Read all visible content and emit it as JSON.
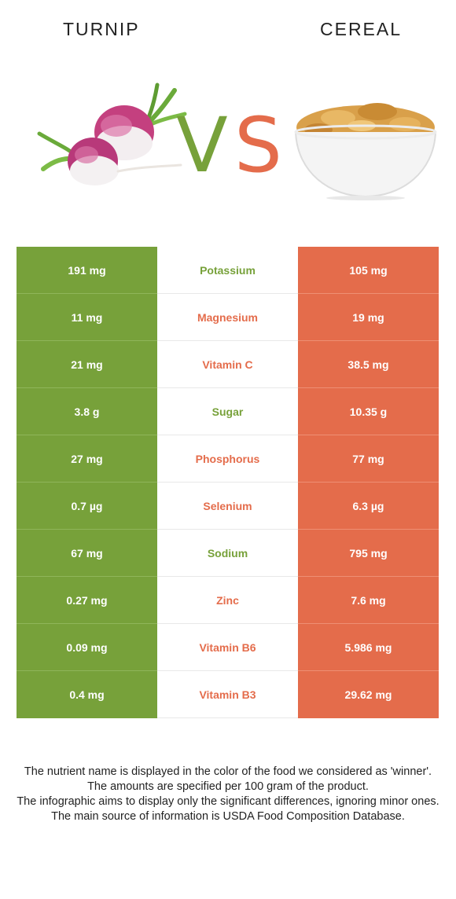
{
  "header": {
    "left_food": "TURNIP",
    "right_food": "CEREAL",
    "vs_v": "V",
    "vs_s": "S"
  },
  "colors": {
    "left_winner": "#77a13a",
    "right_winner": "#e46c4b"
  },
  "icons": {
    "left": "turnip-illustration",
    "right": "cereal-bowl-illustration"
  },
  "rows": [
    {
      "left": "191 mg",
      "nutrient": "Potassium",
      "right": "105 mg",
      "winner": "left"
    },
    {
      "left": "11 mg",
      "nutrient": "Magnesium",
      "right": "19 mg",
      "winner": "right"
    },
    {
      "left": "21 mg",
      "nutrient": "Vitamin C",
      "right": "38.5 mg",
      "winner": "right"
    },
    {
      "left": "3.8 g",
      "nutrient": "Sugar",
      "right": "10.35 g",
      "winner": "left"
    },
    {
      "left": "27 mg",
      "nutrient": "Phosphorus",
      "right": "77 mg",
      "winner": "right"
    },
    {
      "left": "0.7 µg",
      "nutrient": "Selenium",
      "right": "6.3 µg",
      "winner": "right"
    },
    {
      "left": "67 mg",
      "nutrient": "Sodium",
      "right": "795 mg",
      "winner": "left"
    },
    {
      "left": "0.27 mg",
      "nutrient": "Zinc",
      "right": "7.6 mg",
      "winner": "right"
    },
    {
      "left": "0.09 mg",
      "nutrient": "Vitamin B6",
      "right": "5.986 mg",
      "winner": "right"
    },
    {
      "left": "0.4 mg",
      "nutrient": "Vitamin B3",
      "right": "29.62 mg",
      "winner": "right"
    }
  ],
  "footnote": {
    "line1": "The nutrient name is displayed in the color of the food we considered as 'winner'.",
    "line2": "The amounts are specified per 100 gram of the product.",
    "line3": "The infographic aims to display only the significant differences, ignoring minor ones.",
    "line4": "The main source of information is USDA Food Composition Database."
  }
}
